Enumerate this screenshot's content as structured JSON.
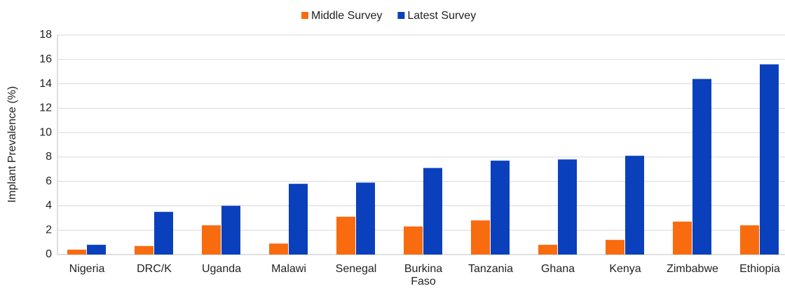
{
  "chart_data": {
    "type": "bar",
    "y_label": "Implant Prevalence (%)",
    "categories": [
      "Nigeria",
      "DRC/K",
      "Uganda",
      "Malawi",
      "Senegal",
      "Burkina Faso",
      "Tanzania",
      "Ghana",
      "Kenya",
      "Zimbabwe",
      "Ethiopia"
    ],
    "series": [
      {
        "name": "Middle Survey",
        "color": "#f96b0f",
        "values": [
          0.4,
          0.7,
          2.4,
          0.9,
          3.1,
          2.3,
          2.8,
          0.8,
          1.2,
          2.7,
          2.4
        ]
      },
      {
        "name": "Latest Survey",
        "color": "#0b40bd",
        "values": [
          0.8,
          3.5,
          4.0,
          5.8,
          5.9,
          7.1,
          7.7,
          7.8,
          8.1,
          14.4,
          15.6
        ]
      }
    ],
    "ylim": [
      0,
      18
    ],
    "yticks": [
      0,
      2,
      4,
      6,
      8,
      10,
      12,
      14,
      16,
      18
    ],
    "grid": true,
    "legend": "top"
  }
}
